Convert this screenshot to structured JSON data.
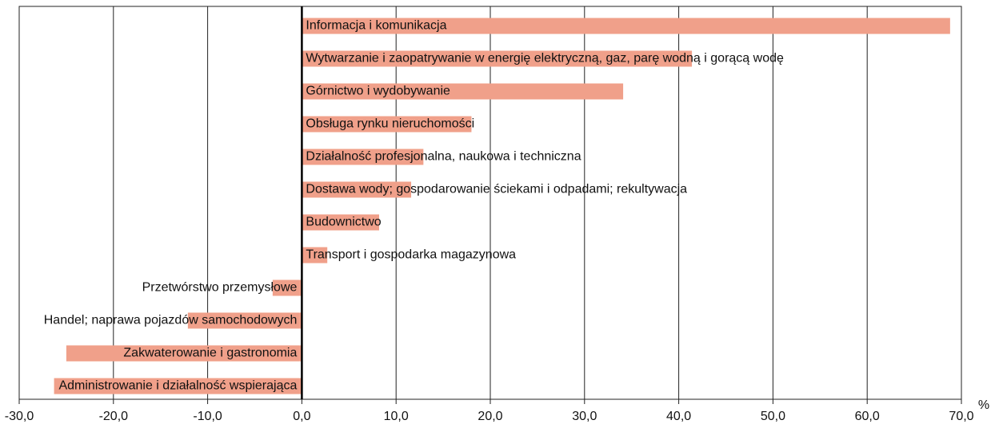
{
  "chart_data": {
    "type": "hbar",
    "categories": [
      "Informacja i komunikacja",
      "Wytwarzanie i zaopatrywanie w energię elektryczną, gaz, parę wodną i gorącą wodę",
      "Górnictwo i wydobywanie",
      "Obsługa rynku nieruchomości",
      "Działalność profesjonalna, naukowa i techniczna",
      "Dostawa wody; gospodarowanie ściekami i odpadami; rekultywacja",
      "Budownictwo",
      "Transport i gospodarka magazynowa",
      "Przetwórstwo przemysłowe",
      "Handel; naprawa pojazdów samochodowych",
      "Zakwaterowanie i gastronomia",
      "Administrowanie i działalność wspierająca"
    ],
    "values": [
      68.8,
      41.4,
      34.1,
      18.0,
      12.9,
      11.6,
      8.2,
      2.7,
      -3.1,
      -12.1,
      -25.0,
      -26.3
    ],
    "color": "#f0a08a",
    "xlabel": "%",
    "xlim": [
      -30,
      70
    ],
    "xticks": [
      {
        "value": -30,
        "label": "-30,0"
      },
      {
        "value": -20,
        "label": "-20,0"
      },
      {
        "value": -10,
        "label": "-10,0"
      },
      {
        "value": 0,
        "label": "0,0"
      },
      {
        "value": 10,
        "label": "10,0"
      },
      {
        "value": 20,
        "label": "20,0"
      },
      {
        "value": 30,
        "label": "30,0"
      },
      {
        "value": 40,
        "label": "40,0"
      },
      {
        "value": 50,
        "label": "50,0"
      },
      {
        "value": 60,
        "label": "60,0"
      },
      {
        "value": 70,
        "label": "70,0"
      }
    ],
    "grid": true
  }
}
